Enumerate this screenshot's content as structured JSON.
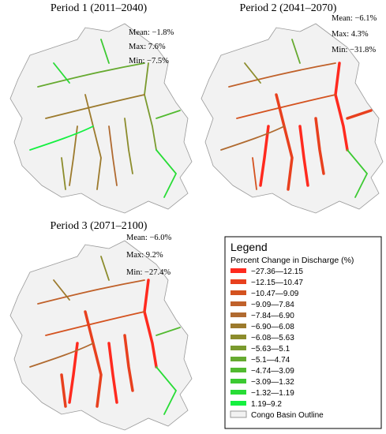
{
  "panels": [
    {
      "title": "Period 1 (2011–2040)",
      "mean": "Mean: −1.8%",
      "max": "Max: 7.6%",
      "min": "Min: −7.5%"
    },
    {
      "title": "Period 2 (2041–2070)",
      "mean": "Mean: −6.1%",
      "max": "Max: 4.3%",
      "min": "Min: −31.8%"
    },
    {
      "title": "Period 3 (2071–2100)",
      "mean": "Mean: −6.0%",
      "max": "Max: 9.2%",
      "min": "Min: −27.4%"
    }
  ],
  "legend": {
    "title": "Legend",
    "subtitle": "Percent Change in Discharge (%)",
    "items": [
      {
        "label": "−27.36—12.15",
        "color": "#ff2a1f"
      },
      {
        "label": "−12.15—10.47",
        "color": "#e8401e"
      },
      {
        "label": "−10.47—9.09",
        "color": "#d4521f"
      },
      {
        "label": "−9.09—7.84",
        "color": "#c0612a"
      },
      {
        "label": "−7.84—6.90",
        "color": "#b06a30"
      },
      {
        "label": "−6.90—6.08",
        "color": "#9c7a2c"
      },
      {
        "label": "−6.08—5.63",
        "color": "#8c8c2c"
      },
      {
        "label": "−5.63—5.1",
        "color": "#7a9a2e"
      },
      {
        "label": "−5.1—4.74",
        "color": "#66aa30"
      },
      {
        "label": "−4.74—3.09",
        "color": "#52ba30"
      },
      {
        "label": "−3.09—1.32",
        "color": "#3cca32"
      },
      {
        "label": "−1.32—1.19",
        "color": "#28dc36"
      },
      {
        "label": "1.19–9.2",
        "color": "#14f040"
      }
    ],
    "outline_label": "Congo Basin Outline"
  }
}
